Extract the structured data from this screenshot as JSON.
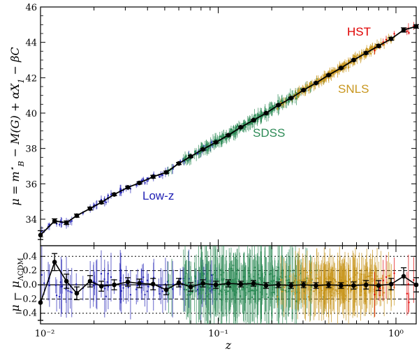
{
  "chart_data": [
    {
      "type": "scatter",
      "panel": "top",
      "title": "",
      "xlabel": "z",
      "ylabel": "μ = m*_B − M(G) + αX1 − βC",
      "x_scale": "log",
      "xlim": [
        0.01,
        1.3
      ],
      "ylim": [
        32.5,
        46
      ],
      "y_ticks": [
        34,
        36,
        38,
        40,
        42,
        44,
        46
      ],
      "y_tick_labels": [
        "34",
        "36",
        "38",
        "40",
        "42",
        "44",
        "46"
      ],
      "groups": [
        {
          "name": "Low-z",
          "color": "#1f1fb4",
          "z_range": [
            0.01,
            0.1
          ]
        },
        {
          "name": "SDSS",
          "color": "#2e8b57",
          "z_range": [
            0.05,
            0.4
          ]
        },
        {
          "name": "SNLS",
          "color": "#c8961e",
          "z_range": [
            0.2,
            1.1
          ]
        },
        {
          "name": "HST",
          "color": "#e00000",
          "z_range": [
            0.7,
            1.3
          ]
        }
      ],
      "binned": {
        "name": "binned distance moduli",
        "color": "#000000",
        "z": [
          0.01,
          0.012,
          0.014,
          0.016,
          0.019,
          0.022,
          0.026,
          0.031,
          0.036,
          0.043,
          0.051,
          0.06,
          0.07,
          0.082,
          0.097,
          0.114,
          0.134,
          0.158,
          0.186,
          0.218,
          0.257,
          0.302,
          0.355,
          0.418,
          0.491,
          0.578,
          0.679,
          0.799,
          0.94,
          1.105,
          1.3
        ],
        "mu": [
          33.1,
          33.9,
          33.8,
          34.2,
          34.6,
          34.95,
          35.4,
          35.8,
          36.05,
          36.4,
          36.65,
          37.15,
          37.55,
          37.95,
          38.35,
          38.75,
          39.2,
          39.6,
          40.0,
          40.45,
          40.85,
          41.3,
          41.7,
          42.15,
          42.55,
          43.0,
          43.4,
          43.8,
          44.2,
          44.7,
          44.9
        ],
        "err": [
          0.25,
          0.12,
          0.1,
          0.09,
          0.08,
          0.07,
          0.07,
          0.06,
          0.06,
          0.08,
          0.07,
          0.06,
          0.06,
          0.05,
          0.05,
          0.05,
          0.04,
          0.04,
          0.04,
          0.04,
          0.04,
          0.04,
          0.04,
          0.04,
          0.04,
          0.05,
          0.06,
          0.07,
          0.08,
          0.12,
          0.1
        ]
      }
    },
    {
      "type": "scatter",
      "panel": "bottom",
      "title": "",
      "xlabel": "z",
      "ylabel": "μ − μΛCDM",
      "x_scale": "log",
      "xlim": [
        0.01,
        1.3
      ],
      "ylim": [
        -0.55,
        0.55
      ],
      "x_ticks": [
        0.01,
        0.1,
        1
      ],
      "x_tick_labels": [
        "10⁻²",
        "10⁻¹",
        "10⁰"
      ],
      "y_ticks": [
        0.4,
        0.2,
        0.0,
        -0.2,
        -0.4
      ],
      "y_tick_labels": [
        "0.4",
        "0.2",
        "0.0",
        "−0.2",
        "−0.4"
      ],
      "reference_lines": [
        0.0,
        0.2,
        -0.2,
        0.4,
        -0.4
      ],
      "binned": {
        "name": "binned residuals",
        "color": "#000000",
        "z": [
          0.01,
          0.012,
          0.014,
          0.016,
          0.019,
          0.022,
          0.026,
          0.031,
          0.036,
          0.043,
          0.051,
          0.06,
          0.07,
          0.082,
          0.097,
          0.114,
          0.134,
          0.158,
          0.186,
          0.218,
          0.257,
          0.302,
          0.355,
          0.418,
          0.491,
          0.578,
          0.679,
          0.799,
          0.94,
          1.105,
          1.3
        ],
        "resid": [
          -0.25,
          0.32,
          0.05,
          -0.12,
          0.05,
          -0.02,
          0.0,
          0.04,
          0.02,
          0.01,
          -0.07,
          0.03,
          -0.03,
          0.02,
          0.0,
          0.02,
          0.01,
          0.02,
          -0.01,
          0.0,
          -0.01,
          0.0,
          -0.01,
          0.0,
          -0.01,
          -0.01,
          0.0,
          -0.01,
          0.01,
          0.12,
          0.0
        ],
        "err": [
          0.25,
          0.12,
          0.1,
          0.09,
          0.08,
          0.07,
          0.07,
          0.06,
          0.06,
          0.08,
          0.07,
          0.06,
          0.06,
          0.05,
          0.05,
          0.05,
          0.04,
          0.04,
          0.04,
          0.04,
          0.04,
          0.04,
          0.04,
          0.04,
          0.04,
          0.05,
          0.06,
          0.07,
          0.08,
          0.12,
          0.1
        ]
      }
    }
  ],
  "labels": {
    "top_ylabel_main": "μ = m",
    "top_ylabel_star": "⋆",
    "top_ylabel_sub": "B",
    "top_ylabel_rest": " − M(G) + αX",
    "top_ylabel_sub1": "1",
    "top_ylabel_tail": " − βC",
    "bottom_ylabel_main": "μ − μ",
    "bottom_ylabel_sub": "ΛCDM",
    "xlabel": "z",
    "low_z": "Low-z",
    "sdss": "SDSS",
    "snls": "SNLS",
    "hst": "HST"
  },
  "colors": {
    "low_z": "#1f1fb4",
    "sdss": "#2e8b57",
    "snls": "#c8961e",
    "hst": "#e00000",
    "binned": "#000000"
  }
}
